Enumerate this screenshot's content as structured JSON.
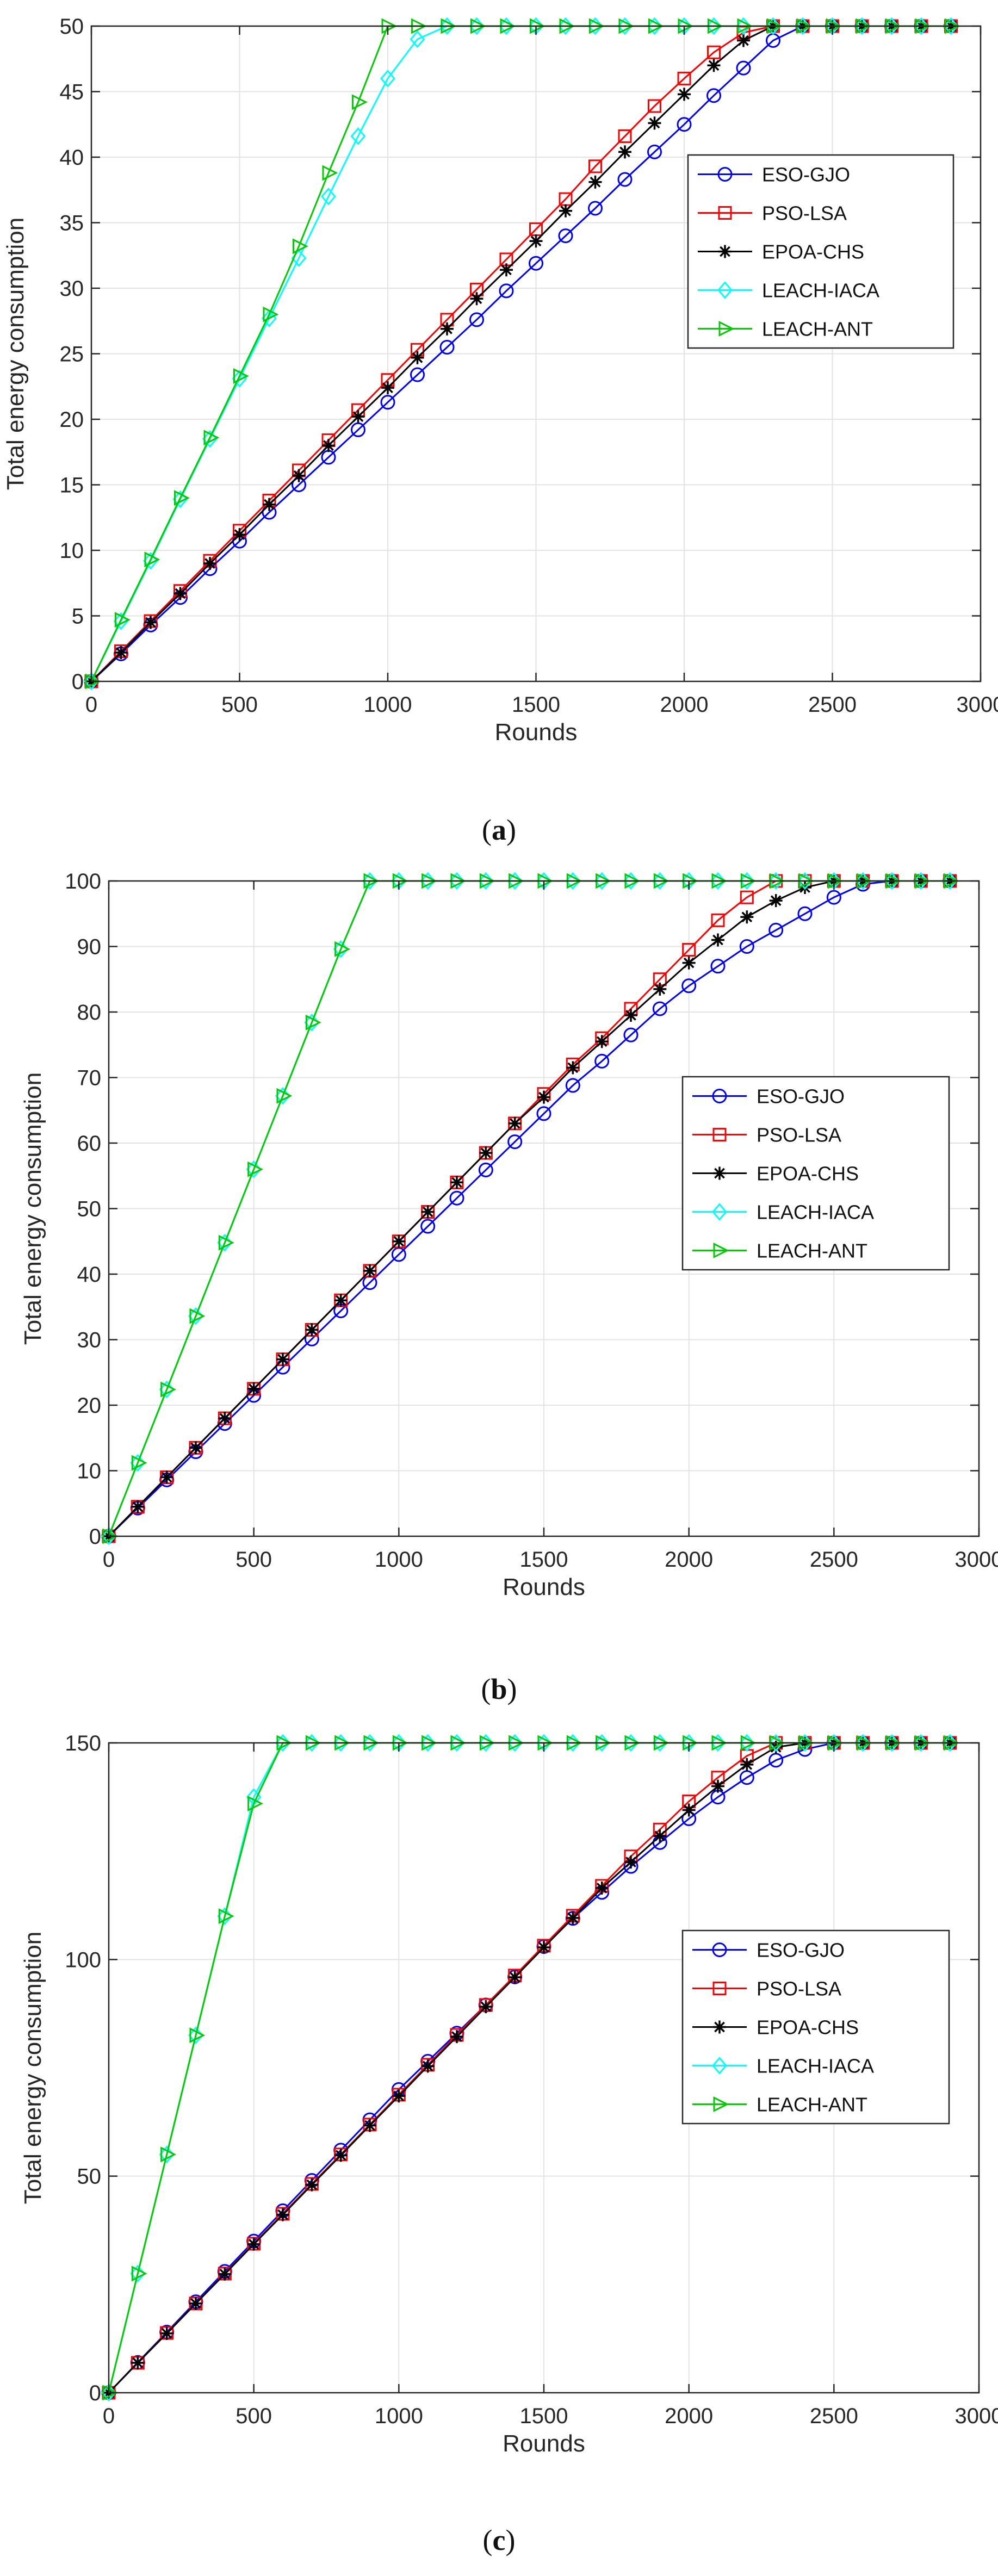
{
  "chart_data": [
    {
      "type": "line",
      "panel_label": "a",
      "xlabel": "Rounds",
      "ylabel": "Total energy consumption",
      "xlim": [
        0,
        3000
      ],
      "ylim": [
        0,
        50
      ],
      "xticks": [
        0,
        500,
        1000,
        1500,
        2000,
        2500,
        3000
      ],
      "yticks": [
        0,
        5,
        10,
        15,
        20,
        25,
        30,
        35,
        40,
        45,
        50
      ],
      "grid": true,
      "legend_position": "top-right",
      "x": [
        0,
        100,
        200,
        300,
        400,
        500,
        600,
        700,
        800,
        900,
        1000,
        1100,
        1200,
        1300,
        1400,
        1500,
        1600,
        1700,
        1800,
        1900,
        2000,
        2100,
        2200,
        2300,
        2400,
        2500,
        2600,
        2700,
        2800,
        2900
      ],
      "series": [
        {
          "name": "ESO-GJO",
          "color": "#0000ff",
          "marker": "circle",
          "values": [
            0,
            2.1,
            4.3,
            6.4,
            8.6,
            10.7,
            12.9,
            15.0,
            17.1,
            19.2,
            21.3,
            23.4,
            25.5,
            27.6,
            29.8,
            31.9,
            34.0,
            36.1,
            38.3,
            40.4,
            42.5,
            44.7,
            46.8,
            48.9,
            50,
            50,
            50,
            50,
            50,
            50
          ]
        },
        {
          "name": "PSO-LSA",
          "color": "#ff0000",
          "marker": "square",
          "values": [
            0,
            2.3,
            4.6,
            6.9,
            9.2,
            11.5,
            13.8,
            16.1,
            18.4,
            20.7,
            23.0,
            25.3,
            27.6,
            29.9,
            32.2,
            34.5,
            36.8,
            39.3,
            41.6,
            43.9,
            46.0,
            48.0,
            49.5,
            50,
            50,
            50,
            50,
            50,
            50,
            50
          ]
        },
        {
          "name": "EPOA-CHS",
          "color": "#000000",
          "marker": "asterisk",
          "values": [
            0,
            2.2,
            4.5,
            6.7,
            9.0,
            11.2,
            13.5,
            15.7,
            18.0,
            20.2,
            22.4,
            24.7,
            26.9,
            29.2,
            31.4,
            33.6,
            35.9,
            38.1,
            40.4,
            42.6,
            44.8,
            47.0,
            48.9,
            50,
            50,
            50,
            50,
            50,
            50,
            50
          ]
        },
        {
          "name": "LEACH-IACA",
          "color": "#00ffff",
          "marker": "diamond",
          "values": [
            0,
            4.6,
            9.2,
            13.9,
            18.5,
            23.1,
            27.7,
            32.3,
            37.0,
            41.6,
            46.0,
            49.0,
            50,
            50,
            50,
            50,
            50,
            50,
            50,
            50,
            50,
            50,
            50,
            50,
            50,
            50,
            50,
            50,
            50,
            50
          ]
        },
        {
          "name": "LEACH-ANT",
          "color": "#00cc00",
          "marker": "triangle-right",
          "values": [
            0,
            4.7,
            9.3,
            14.0,
            18.6,
            23.3,
            28.0,
            33.2,
            38.8,
            44.2,
            50,
            50,
            50,
            50,
            50,
            50,
            50,
            50,
            50,
            50,
            50,
            50,
            50,
            50,
            50,
            50,
            50,
            50,
            50,
            50
          ]
        }
      ]
    },
    {
      "type": "line",
      "panel_label": "b",
      "xlabel": "Rounds",
      "ylabel": "Total energy consumption",
      "xlim": [
        0,
        3000
      ],
      "ylim": [
        0,
        100
      ],
      "xticks": [
        0,
        500,
        1000,
        1500,
        2000,
        2500,
        3000
      ],
      "yticks": [
        0,
        10,
        20,
        30,
        40,
        50,
        60,
        70,
        80,
        90,
        100
      ],
      "grid": true,
      "legend_position": "right",
      "x": [
        0,
        100,
        200,
        300,
        400,
        500,
        600,
        700,
        800,
        900,
        1000,
        1100,
        1200,
        1300,
        1400,
        1500,
        1600,
        1700,
        1800,
        1900,
        2000,
        2100,
        2200,
        2300,
        2400,
        2500,
        2600,
        2700,
        2800,
        2900
      ],
      "series": [
        {
          "name": "ESO-GJO",
          "color": "#0000ff",
          "marker": "circle",
          "values": [
            0,
            4.3,
            8.6,
            12.9,
            17.2,
            21.5,
            25.8,
            30.1,
            34.4,
            38.7,
            43.0,
            47.3,
            51.6,
            55.9,
            60.2,
            64.5,
            68.8,
            72.5,
            76.5,
            80.5,
            84.0,
            87.0,
            90.0,
            92.5,
            95.0,
            97.5,
            99.5,
            100,
            100,
            100
          ]
        },
        {
          "name": "PSO-LSA",
          "color": "#ff0000",
          "marker": "square",
          "values": [
            0,
            4.5,
            9.0,
            13.5,
            18.0,
            22.5,
            27.0,
            31.5,
            36.0,
            40.5,
            45.0,
            49.5,
            54.0,
            58.5,
            63.0,
            67.5,
            72.0,
            76.0,
            80.5,
            85.0,
            89.5,
            94.0,
            97.5,
            100,
            100,
            100,
            100,
            100,
            100,
            100
          ]
        },
        {
          "name": "EPOA-CHS",
          "color": "#000000",
          "marker": "asterisk",
          "values": [
            0,
            4.5,
            9.0,
            13.5,
            18.0,
            22.5,
            27.0,
            31.5,
            36.0,
            40.5,
            45.0,
            49.5,
            54.0,
            58.5,
            63.0,
            67.0,
            71.5,
            75.5,
            79.5,
            83.5,
            87.5,
            91.0,
            94.5,
            97.0,
            99.0,
            100,
            100,
            100,
            100,
            100
          ]
        },
        {
          "name": "LEACH-IACA",
          "color": "#00ffff",
          "marker": "diamond",
          "values": [
            0,
            11.2,
            22.4,
            33.6,
            44.8,
            56.0,
            67.2,
            78.4,
            89.6,
            100,
            100,
            100,
            100,
            100,
            100,
            100,
            100,
            100,
            100,
            100,
            100,
            100,
            100,
            100,
            100,
            100,
            100,
            100,
            100,
            100
          ]
        },
        {
          "name": "LEACH-ANT",
          "color": "#00cc00",
          "marker": "triangle-right",
          "values": [
            0,
            11.2,
            22.4,
            33.6,
            44.8,
            56.0,
            67.2,
            78.4,
            89.6,
            100,
            100,
            100,
            100,
            100,
            100,
            100,
            100,
            100,
            100,
            100,
            100,
            100,
            100,
            100,
            100,
            100,
            100,
            100,
            100,
            100
          ]
        }
      ]
    },
    {
      "type": "line",
      "panel_label": "c",
      "xlabel": "Rounds",
      "ylabel": "Total energy consumption",
      "xlim": [
        0,
        3000
      ],
      "ylim": [
        0,
        150
      ],
      "xticks": [
        0,
        500,
        1000,
        1500,
        2000,
        2500,
        3000
      ],
      "yticks": [
        0,
        50,
        100,
        150
      ],
      "grid": true,
      "legend_position": "right",
      "x": [
        0,
        100,
        200,
        300,
        400,
        500,
        600,
        700,
        800,
        900,
        1000,
        1100,
        1200,
        1300,
        1400,
        1500,
        1600,
        1700,
        1800,
        1900,
        2000,
        2100,
        2200,
        2300,
        2400,
        2500,
        2600,
        2700,
        2800,
        2900
      ],
      "series": [
        {
          "name": "ESO-GJO",
          "color": "#0000ff",
          "marker": "circle",
          "values": [
            0,
            7.0,
            14.0,
            21.0,
            28.0,
            35.0,
            42.0,
            49.0,
            56.0,
            63.0,
            70.0,
            76.5,
            83.0,
            89.5,
            96.0,
            103.0,
            109.5,
            115.5,
            121.5,
            127.0,
            132.5,
            137.5,
            142.0,
            146.0,
            148.5,
            150,
            150,
            150,
            150,
            150
          ]
        },
        {
          "name": "PSO-LSA",
          "color": "#ff0000",
          "marker": "square",
          "values": [
            0,
            6.9,
            13.8,
            20.6,
            27.5,
            34.4,
            41.3,
            48.2,
            55.0,
            61.9,
            68.8,
            75.7,
            82.6,
            89.5,
            96.3,
            103.2,
            110.1,
            117.0,
            123.8,
            130.0,
            136.5,
            142.0,
            147.0,
            150,
            150,
            150,
            150,
            150,
            150,
            150
          ]
        },
        {
          "name": "EPOA-CHS",
          "color": "#000000",
          "marker": "asterisk",
          "values": [
            0,
            6.9,
            13.7,
            20.6,
            27.4,
            34.3,
            41.1,
            48.0,
            54.8,
            61.7,
            68.5,
            75.4,
            82.2,
            89.1,
            95.9,
            102.8,
            109.6,
            116.5,
            122.5,
            128.5,
            134.5,
            140.0,
            145.0,
            149.0,
            150,
            150,
            150,
            150,
            150,
            150
          ]
        },
        {
          "name": "LEACH-IACA",
          "color": "#00ffff",
          "marker": "diamond",
          "values": [
            0,
            27.5,
            55.0,
            82.5,
            110.0,
            137.5,
            150,
            150,
            150,
            150,
            150,
            150,
            150,
            150,
            150,
            150,
            150,
            150,
            150,
            150,
            150,
            150,
            150,
            150,
            150,
            150,
            150,
            150,
            150,
            150
          ]
        },
        {
          "name": "LEACH-ANT",
          "color": "#00cc00",
          "marker": "triangle-right",
          "values": [
            0,
            27.5,
            55.0,
            82.5,
            110.0,
            136.0,
            150,
            150,
            150,
            150,
            150,
            150,
            150,
            150,
            150,
            150,
            150,
            150,
            150,
            150,
            150,
            150,
            150,
            150,
            150,
            150,
            150,
            150,
            150,
            150
          ]
        }
      ]
    }
  ]
}
